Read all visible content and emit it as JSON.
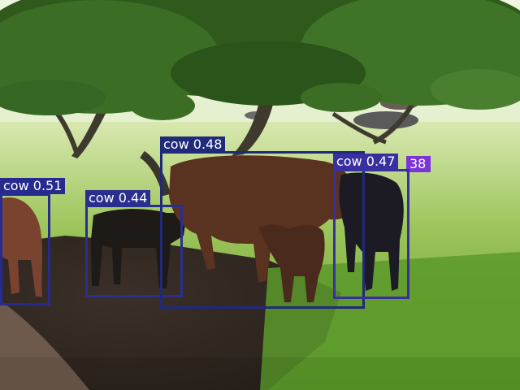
{
  "detections": [
    {
      "class": "cow",
      "score": "0.51",
      "color": "#272a8e"
    },
    {
      "class": "cow",
      "score": "0.44",
      "color": "#2a2f8f"
    },
    {
      "class": "cow",
      "score": "0.48",
      "color": "#1f2a7a"
    },
    {
      "class": "cow",
      "score": "0.47",
      "color": "#3a2fa0"
    },
    {
      "class": "",
      "score": "38",
      "color": "#7a34d8"
    }
  ]
}
